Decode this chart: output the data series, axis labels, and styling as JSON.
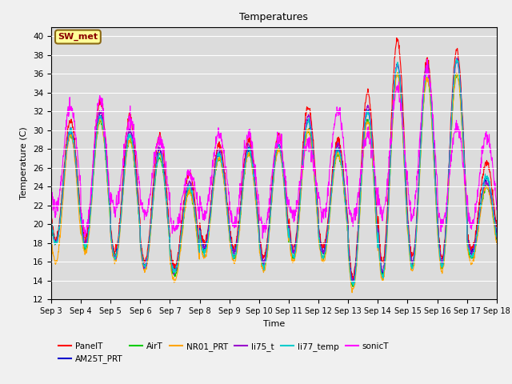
{
  "title": "Temperatures",
  "xlabel": "Time",
  "ylabel": "Temperature (C)",
  "ylim": [
    12,
    41
  ],
  "yticks": [
    12,
    14,
    16,
    18,
    20,
    22,
    24,
    26,
    28,
    30,
    32,
    34,
    36,
    38,
    40
  ],
  "xtick_labels": [
    "Sep 3",
    "Sep 4",
    "Sep 5",
    "Sep 6",
    "Sep 7",
    "Sep 8",
    "Sep 9",
    "Sep 10",
    "Sep 11",
    "Sep 12",
    "Sep 13",
    "Sep 14",
    "Sep 15",
    "Sep 16",
    "Sep 17",
    "Sep 18"
  ],
  "annotation_text": "SW_met",
  "annotation_color": "#8B0000",
  "annotation_bg": "#FFFF99",
  "annotation_edge": "#8B6914",
  "plot_bg_color": "#DCDCDC",
  "fig_bg_color": "#F0F0F0",
  "grid_color": "#FFFFFF",
  "series_colors": {
    "PanelT": "#FF0000",
    "AM25T_PRT": "#0000CC",
    "AirT": "#00CC00",
    "NR01_PRT": "#FFA500",
    "li75_t": "#9900CC",
    "li77_temp": "#00CCCC",
    "sonicT": "#FF00FF"
  },
  "linewidth": 0.8,
  "n_days": 15,
  "pts_per_day": 96,
  "panelT_peaks": [
    31.0,
    33.0,
    31.5,
    29.5,
    25.5,
    28.5,
    29.0,
    29.5,
    32.5,
    29.0,
    34.0,
    39.5,
    37.5,
    38.5,
    26.5
  ],
  "panelT_mins": [
    18.5,
    18.5,
    17.0,
    16.0,
    15.5,
    18.0,
    17.5,
    16.5,
    17.5,
    17.5,
    14.5,
    16.0,
    16.5,
    16.5,
    17.5
  ],
  "am25t_peaks": [
    30.0,
    31.5,
    30.0,
    28.0,
    24.0,
    27.5,
    28.0,
    28.5,
    31.0,
    28.0,
    32.0,
    37.0,
    36.5,
    37.5,
    25.0
  ],
  "am25t_mins": [
    18.0,
    18.0,
    16.5,
    15.5,
    15.0,
    17.5,
    17.0,
    16.0,
    17.0,
    17.0,
    14.0,
    15.0,
    16.0,
    16.0,
    17.0
  ],
  "airT_peaks": [
    29.5,
    31.0,
    29.0,
    27.0,
    23.5,
    27.0,
    27.5,
    28.0,
    30.0,
    27.5,
    31.0,
    36.0,
    35.5,
    36.0,
    24.0
  ],
  "airT_mins": [
    18.0,
    17.5,
    16.5,
    15.5,
    14.5,
    17.0,
    16.5,
    15.5,
    16.5,
    16.5,
    13.5,
    14.5,
    15.5,
    15.5,
    16.5
  ],
  "nr01_peaks": [
    29.5,
    31.0,
    29.0,
    27.5,
    23.5,
    27.0,
    27.5,
    28.0,
    30.0,
    27.5,
    31.0,
    36.0,
    35.5,
    36.0,
    24.0
  ],
  "nr01_mins": [
    16.0,
    17.0,
    16.0,
    15.0,
    14.0,
    16.5,
    16.0,
    15.0,
    16.0,
    16.0,
    13.0,
    14.0,
    15.0,
    15.0,
    16.0
  ],
  "li75_peaks": [
    30.0,
    32.0,
    30.0,
    28.0,
    24.5,
    28.0,
    28.5,
    28.5,
    31.5,
    28.5,
    32.5,
    37.0,
    37.0,
    37.5,
    24.5
  ],
  "li75_mins": [
    18.0,
    18.0,
    16.5,
    15.5,
    15.0,
    17.5,
    17.0,
    16.0,
    17.0,
    17.0,
    14.0,
    15.0,
    16.0,
    16.0,
    17.0
  ],
  "li77_peaks": [
    30.0,
    31.5,
    29.5,
    27.5,
    24.0,
    27.5,
    28.0,
    28.5,
    31.0,
    28.0,
    32.0,
    37.0,
    36.5,
    37.5,
    25.0
  ],
  "li77_mins": [
    18.0,
    17.5,
    16.5,
    15.5,
    15.0,
    17.0,
    16.5,
    15.5,
    16.5,
    16.5,
    13.5,
    14.5,
    15.5,
    15.5,
    16.5
  ],
  "sonic_peaks": [
    32.5,
    33.5,
    31.0,
    29.0,
    25.5,
    29.5,
    29.5,
    29.0,
    28.5,
    32.0,
    29.5,
    34.5,
    36.5,
    30.5,
    29.5
  ],
  "sonic_mins": [
    21.5,
    19.0,
    21.5,
    21.0,
    19.5,
    21.0,
    20.0,
    19.5,
    21.0,
    21.0,
    20.5,
    21.0,
    21.0,
    20.0,
    20.0
  ]
}
